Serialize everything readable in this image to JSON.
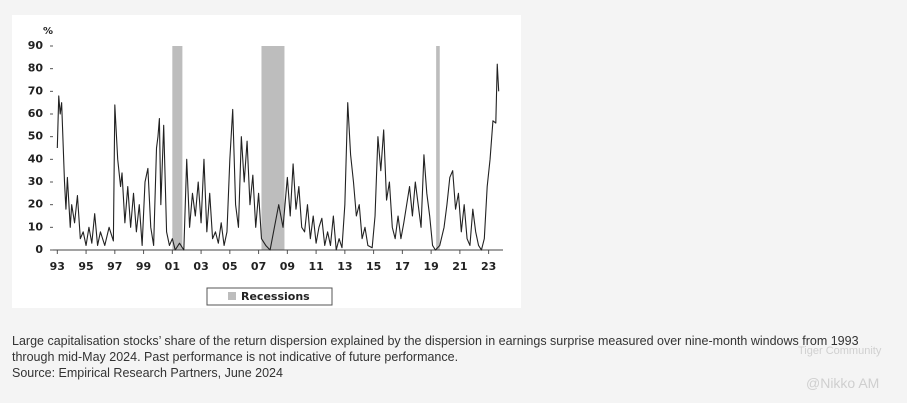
{
  "chart_data": {
    "type": "line",
    "y_unit": "%",
    "xlim": [
      1992.7,
      2024.0
    ],
    "xticks": [
      {
        "value": 1993,
        "label": "93"
      },
      {
        "value": 1995,
        "label": "95"
      },
      {
        "value": 1997,
        "label": "97"
      },
      {
        "value": 1999,
        "label": "99"
      },
      {
        "value": 2001,
        "label": "01"
      },
      {
        "value": 2003,
        "label": "03"
      },
      {
        "value": 2005,
        "label": "05"
      },
      {
        "value": 2007,
        "label": "07"
      },
      {
        "value": 2009,
        "label": "09"
      },
      {
        "value": 2011,
        "label": "11"
      },
      {
        "value": 2013,
        "label": "13"
      },
      {
        "value": 2015,
        "label": "15"
      },
      {
        "value": 2017,
        "label": "17"
      },
      {
        "value": 2019,
        "label": "19"
      },
      {
        "value": 2021,
        "label": "21"
      },
      {
        "value": 2023,
        "label": "23"
      }
    ],
    "ylim": [
      0,
      90
    ],
    "yticks": [
      0,
      10,
      20,
      30,
      40,
      50,
      60,
      70,
      80,
      90
    ],
    "grid": false,
    "recession_name": "Recessions",
    "recession_color": "#bdbdbd",
    "recessions": [
      [
        2001.0,
        2001.7
      ],
      [
        2007.2,
        2008.8
      ],
      [
        2019.35,
        2019.6
      ]
    ],
    "x": [
      1993.0,
      1993.1,
      1993.2,
      1993.3,
      1993.5,
      1993.6,
      1993.7,
      1993.9,
      1994.0,
      1994.2,
      1994.4,
      1994.6,
      1994.8,
      1995.0,
      1995.2,
      1995.4,
      1995.6,
      1995.8,
      1996.0,
      1996.3,
      1996.6,
      1996.9,
      1997.0,
      1997.2,
      1997.4,
      1997.5,
      1997.7,
      1997.9,
      1998.1,
      1998.3,
      1998.5,
      1998.7,
      1998.9,
      1999.1,
      1999.3,
      1999.5,
      1999.7,
      1999.9,
      2000.0,
      2000.1,
      2000.2,
      2000.4,
      2000.6,
      2000.8,
      2001.0,
      2001.2,
      2001.5,
      2001.8,
      2002.0,
      2002.2,
      2002.4,
      2002.6,
      2002.8,
      2003.0,
      2003.2,
      2003.4,
      2003.6,
      2003.8,
      2004.0,
      2004.2,
      2004.4,
      2004.6,
      2004.8,
      2005.0,
      2005.2,
      2005.4,
      2005.6,
      2005.8,
      2006.0,
      2006.2,
      2006.4,
      2006.6,
      2006.8,
      2007.0,
      2007.2,
      2007.5,
      2007.8,
      2008.1,
      2008.4,
      2008.7,
      2009.0,
      2009.2,
      2009.4,
      2009.6,
      2009.8,
      2010.0,
      2010.2,
      2010.4,
      2010.6,
      2010.8,
      2011.0,
      2011.2,
      2011.4,
      2011.6,
      2011.8,
      2012.0,
      2012.2,
      2012.4,
      2012.6,
      2012.8,
      2013.0,
      2013.2,
      2013.4,
      2013.6,
      2013.8,
      2014.0,
      2014.2,
      2014.4,
      2014.6,
      2014.9,
      2015.1,
      2015.3,
      2015.5,
      2015.7,
      2015.9,
      2016.1,
      2016.3,
      2016.5,
      2016.7,
      2016.9,
      2017.1,
      2017.3,
      2017.5,
      2017.7,
      2017.9,
      2018.1,
      2018.3,
      2018.5,
      2018.7,
      2018.9,
      2019.1,
      2019.3,
      2019.6,
      2019.9,
      2020.1,
      2020.3,
      2020.5,
      2020.7,
      2020.9,
      2021.1,
      2021.3,
      2021.5,
      2021.7,
      2021.9,
      2022.1,
      2022.3,
      2022.5,
      2022.7,
      2022.9,
      2023.1,
      2023.3,
      2023.5,
      2023.6,
      2023.7
    ],
    "series": [
      {
        "color": "#222222",
        "values": [
          45,
          68,
          60,
          65,
          30,
          18,
          32,
          10,
          20,
          12,
          24,
          5,
          8,
          2,
          10,
          3,
          16,
          2,
          8,
          2,
          10,
          4,
          64,
          40,
          28,
          34,
          12,
          28,
          10,
          25,
          8,
          20,
          2,
          30,
          36,
          10,
          2,
          45,
          50,
          58,
          20,
          55,
          8,
          2,
          5,
          0,
          3,
          0,
          40,
          10,
          25,
          15,
          30,
          12,
          40,
          8,
          25,
          5,
          8,
          3,
          12,
          2,
          8,
          40,
          62,
          20,
          10,
          50,
          30,
          48,
          20,
          33,
          10,
          25,
          5,
          2,
          0,
          10,
          20,
          10,
          32,
          15,
          38,
          18,
          28,
          10,
          8,
          20,
          5,
          15,
          3,
          10,
          14,
          2,
          8,
          2,
          15,
          0,
          5,
          1,
          20,
          65,
          42,
          30,
          15,
          20,
          5,
          10,
          2,
          1,
          15,
          50,
          35,
          53,
          22,
          30,
          10,
          5,
          15,
          5,
          12,
          20,
          28,
          15,
          30,
          20,
          10,
          42,
          25,
          15,
          2,
          0,
          2,
          10,
          20,
          32,
          35,
          18,
          25,
          8,
          20,
          5,
          2,
          18,
          8,
          2,
          0,
          5,
          28,
          40,
          57,
          56,
          82,
          70
        ]
      }
    ]
  },
  "caption": [
    "Large capitalisation stocks’ share of the return dispersion explained by the dispersion in earnings surprise measured over nine-month windows from 1993",
    "through mid-May 2024. Past performance is not indicative of future performance.",
    "Source: Empirical Research Partners, June 2024"
  ],
  "watermarks": [
    "Tiger Community",
    "@Nikko AM"
  ]
}
